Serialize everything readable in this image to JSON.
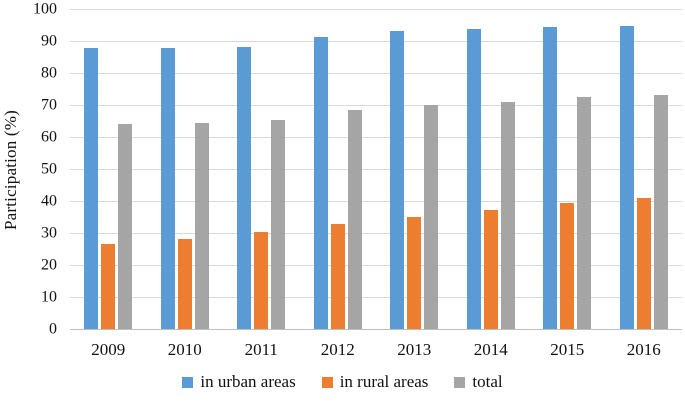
{
  "chart_data": {
    "type": "bar",
    "title": "",
    "xlabel": "",
    "ylabel": "Participation (%)",
    "categories": [
      "2009",
      "2010",
      "2011",
      "2012",
      "2013",
      "2014",
      "2015",
      "2016"
    ],
    "series": [
      {
        "name": "in urban areas",
        "color": "#5B9BD5",
        "values": [
          88,
          88,
          88.4,
          91.7,
          93.4,
          94,
          94.6,
          95
        ]
      },
      {
        "name": "in rural areas",
        "color": "#ED7D31",
        "values": [
          27,
          28.5,
          30.5,
          33,
          35.3,
          37.4,
          39.7,
          41.3
        ]
      },
      {
        "name": "total",
        "color": "#A5A5A5",
        "values": [
          64.3,
          64.8,
          65.7,
          68.6,
          70.2,
          71.4,
          72.7,
          73.5
        ]
      }
    ],
    "ylim": [
      0,
      100
    ],
    "ytick_step": 10,
    "yticks": [
      "0",
      "10",
      "20",
      "30",
      "40",
      "50",
      "60",
      "70",
      "80",
      "90",
      "100"
    ],
    "grid": true,
    "gridline_color": "#D9D9D9",
    "axis_line_color": "#BFBFBF",
    "legend_position": "bottom",
    "text_color": "#111111"
  }
}
